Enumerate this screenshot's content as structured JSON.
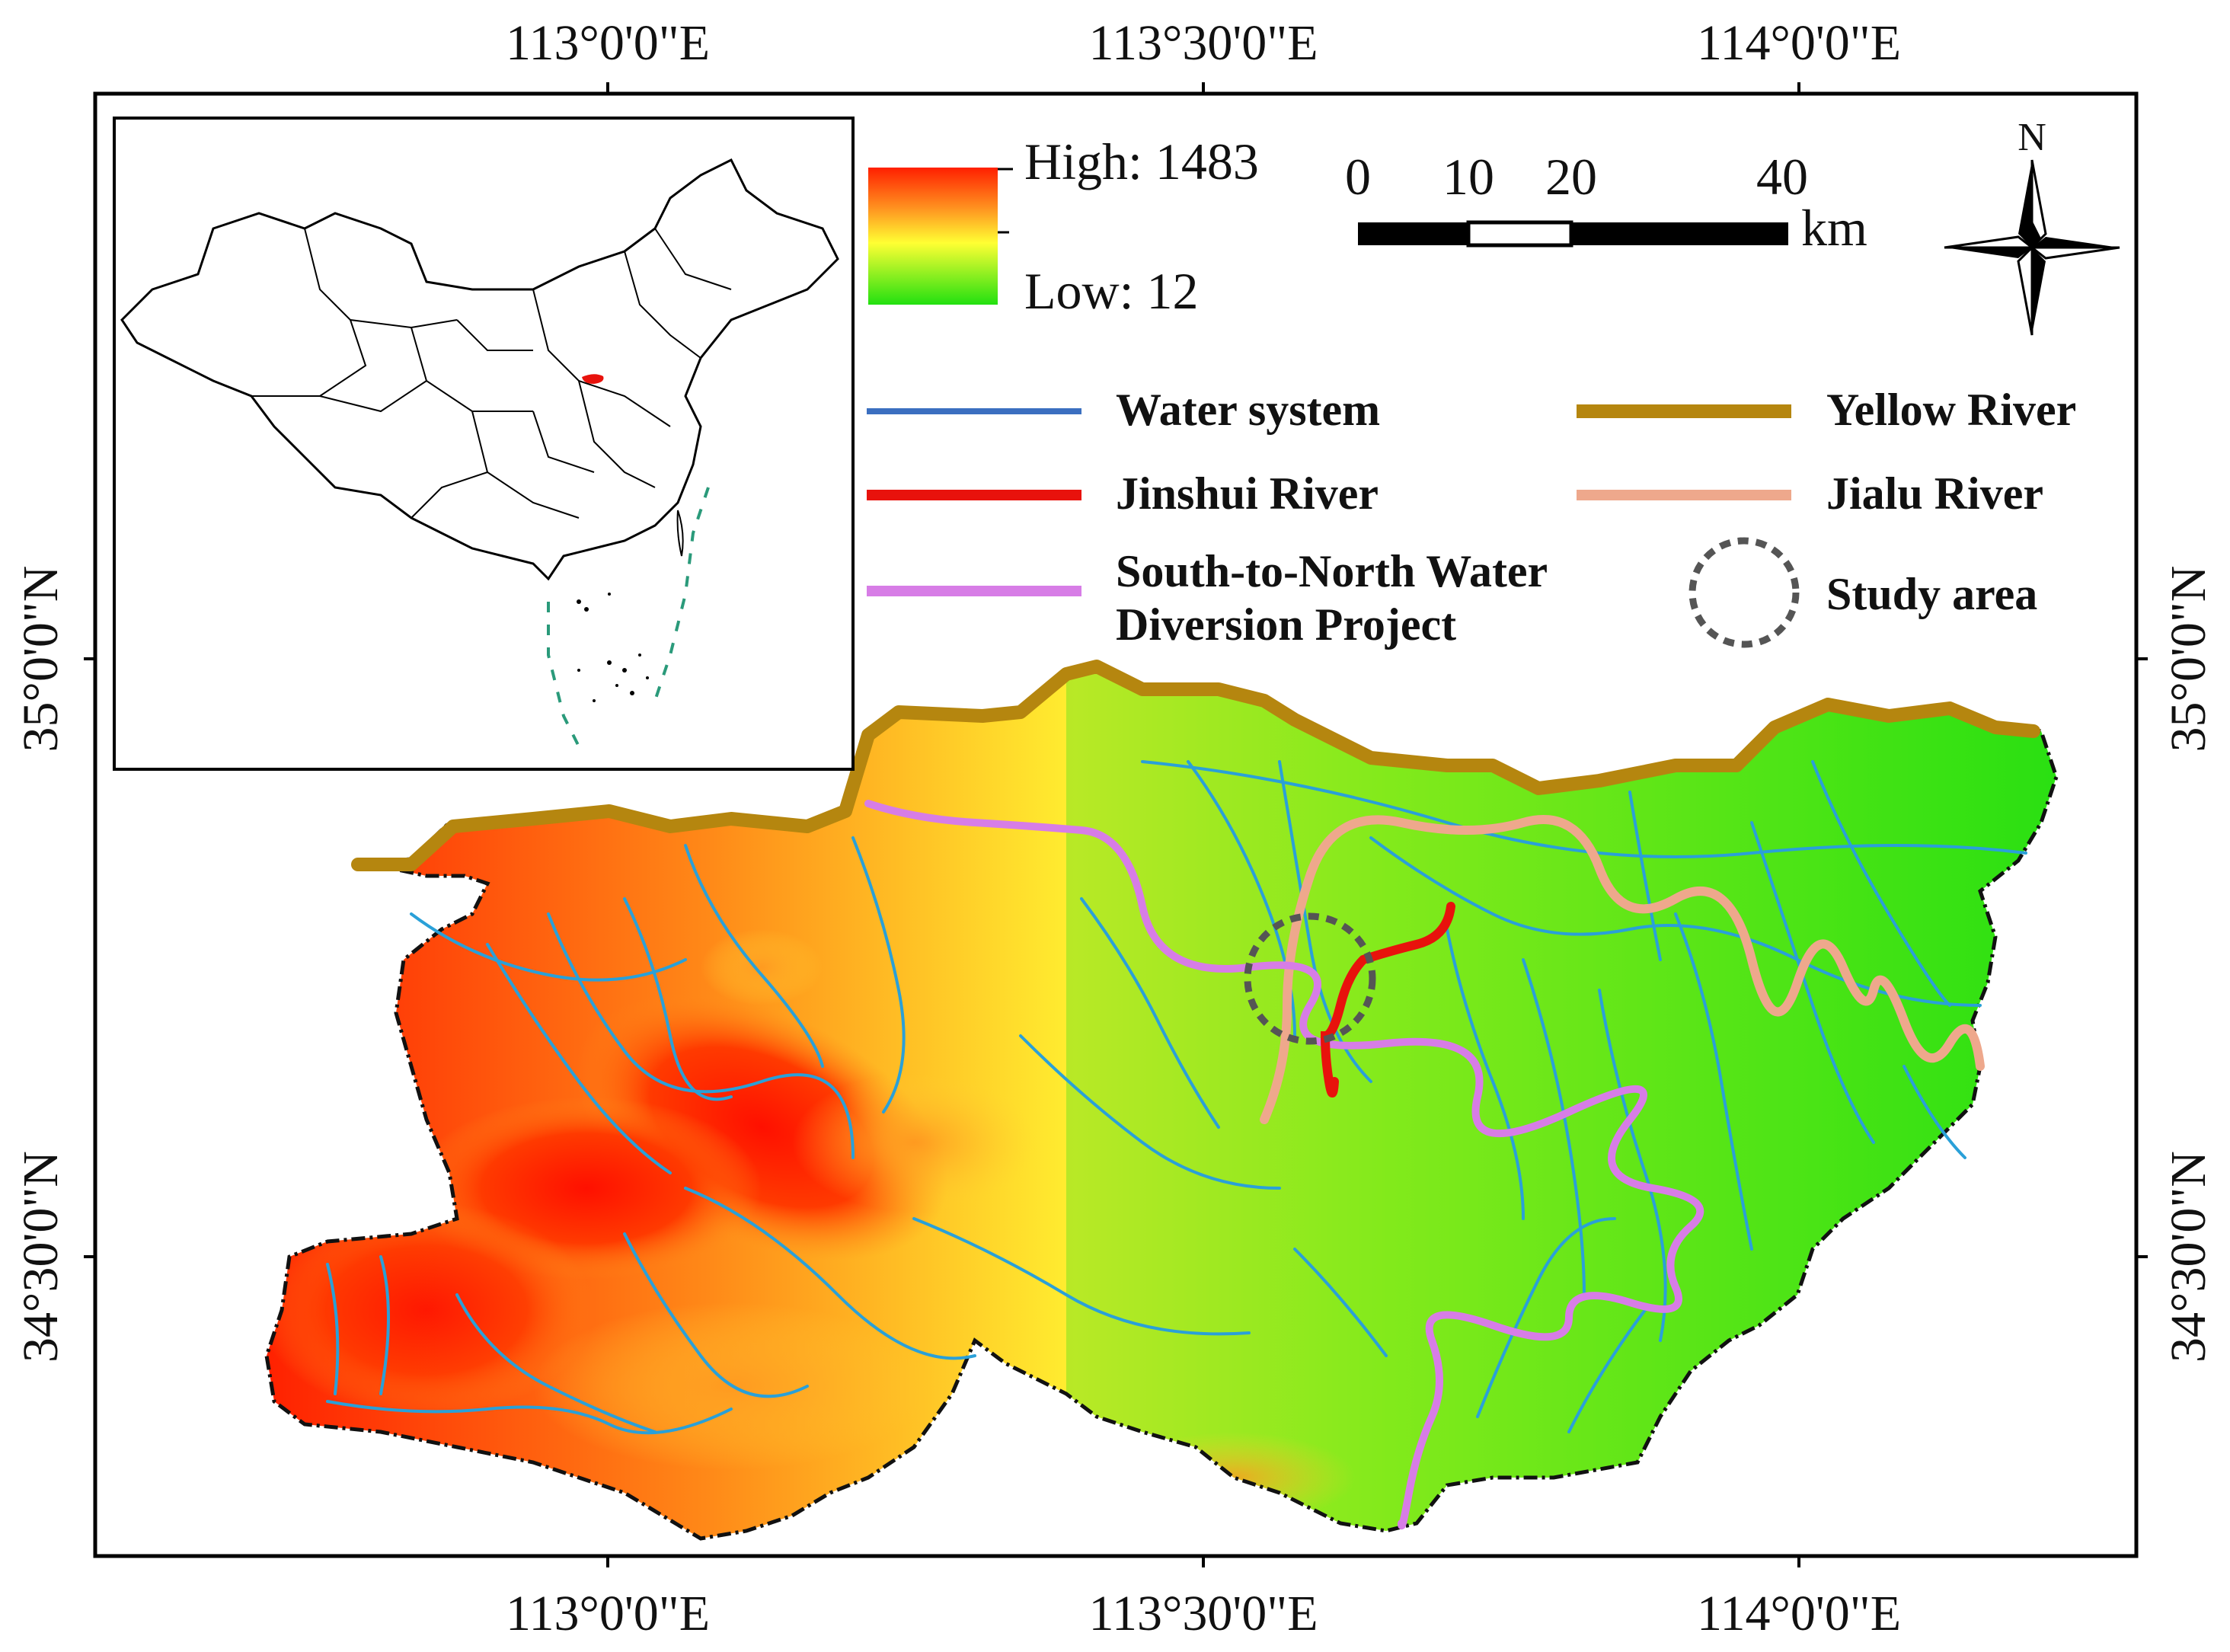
{
  "map": {
    "graticule": {
      "top_labels": [
        "113°0'0\"E",
        "113°30'0\"E",
        "114°0'0\"E"
      ],
      "bottom_labels": [
        "113°0'0\"E",
        "113°30'0\"E",
        "114°0'0\"E"
      ],
      "left_labels": [
        "35°0'0\"N",
        "34°30'0\"N"
      ],
      "right_labels": [
        "35°0'0\"N",
        "34°30'0\"N"
      ]
    },
    "elevation_legend": {
      "high_label": "High: 1483",
      "low_label": "Low: 12",
      "high_value": 1483,
      "low_value": 12,
      "gradient_colors": [
        "#ff1f00",
        "#ffa020",
        "#ffff33",
        "#9ef020",
        "#22e010"
      ]
    },
    "scale_bar": {
      "ticks": [
        "0",
        "10",
        "20",
        "40"
      ],
      "unit": "km"
    },
    "north_arrow": {
      "label": "N",
      "icon": "north-arrow-icon"
    },
    "legend": [
      {
        "key": "water",
        "label": "Water system",
        "color": "#3b6fc0"
      },
      {
        "key": "yellow",
        "label": "Yellow River",
        "color": "#b5860f"
      },
      {
        "key": "jinshui",
        "label": "Jinshui River",
        "color": "#e8120c"
      },
      {
        "key": "jialu",
        "label": "Jialu River",
        "color": "#eea88c"
      },
      {
        "key": "snwdp",
        "label_line1": "South-to-North Water",
        "label_line2": "Diversion Project",
        "color": "#d77de6"
      },
      {
        "key": "study",
        "label": "Study area",
        "color": "#555555"
      }
    ],
    "inset": {
      "highlight_color": "#e8120c",
      "border_color": "#000000"
    }
  }
}
